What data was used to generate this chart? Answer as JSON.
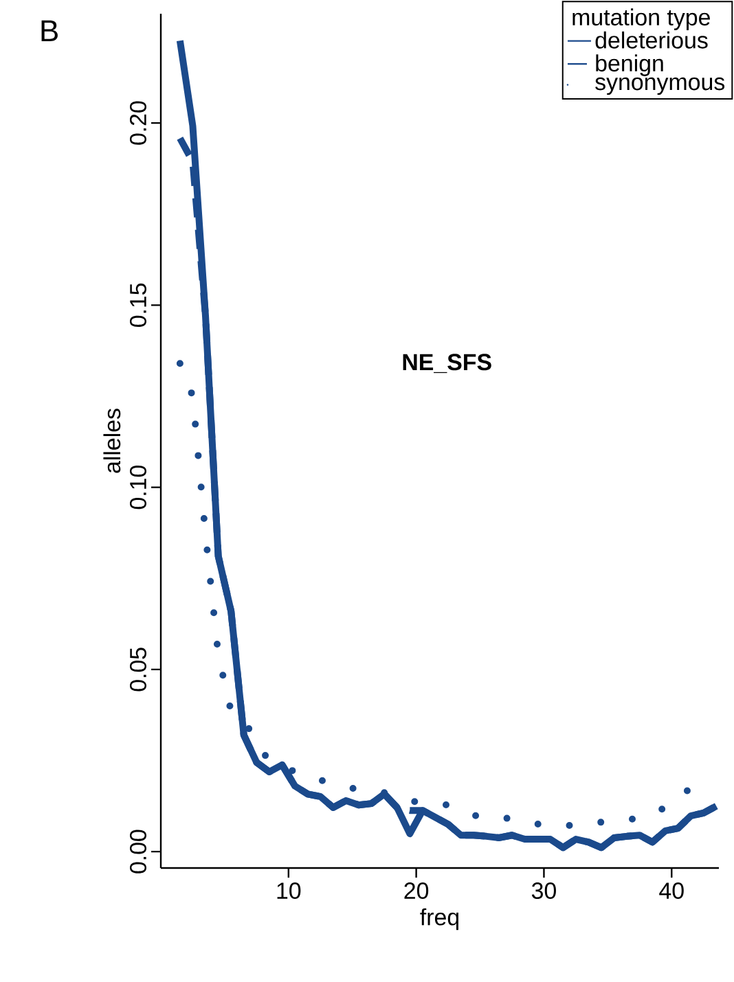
{
  "chart_data": {
    "type": "line",
    "xlabel": "freq",
    "ylabel": "alleles",
    "legend_title": "mutation type",
    "legend": "top right",
    "xlim": [
      0,
      43.7
    ],
    "ylim": [
      -0.0045,
      0.23
    ],
    "xticks": [
      10,
      20,
      30,
      40
    ],
    "yticks": [
      {
        "value": 0,
        "label": "0.00"
      },
      {
        "value": 0.05,
        "label": "0.05"
      },
      {
        "value": 0.1,
        "label": "0.10"
      },
      {
        "value": 0.15,
        "label": "0.15"
      },
      {
        "value": 0.2,
        "label": "0.20"
      }
    ],
    "annotations": [
      "B",
      "NE_SFS"
    ],
    "x": [
      1.5,
      2.5,
      3.5,
      4.5,
      5.5,
      6.5,
      7.5,
      8.5,
      9.5,
      10.5,
      11.5,
      12.5,
      13.5,
      14.5,
      15.5,
      16.5,
      17.5,
      18.5,
      19.5,
      20.5,
      21.5,
      22.5,
      23.5,
      24.5,
      25.5,
      26.5,
      27.5,
      28.5,
      29.5,
      30.5,
      31.5,
      32.5,
      33.5,
      34.5,
      35.5,
      36.5,
      37.5,
      38.5,
      39.5,
      40.5,
      41.5,
      42.5,
      43.5
    ],
    "series": [
      {
        "name": "deleterious",
        "color": "#1b4a8c",
        "line_style": "solid",
        "values": [
          0.2226,
          0.1992,
          0.147,
          0.0811,
          0.066,
          0.032,
          0.0245,
          0.0219,
          0.0238,
          0.018,
          0.0158,
          0.0151,
          0.0121,
          0.014,
          0.0128,
          0.0132,
          0.0158,
          0.0121,
          0.0049,
          0.0113,
          0.0094,
          0.0075,
          0.0045,
          0.0045,
          0.0042,
          0.0038,
          0.0045,
          0.0034,
          0.0034,
          0.0034,
          0.0011,
          0.0034,
          0.0026,
          0.0011,
          0.0038,
          0.0042,
          0.0045,
          0.0026,
          0.0057,
          0.0064,
          0.0098,
          0.0106,
          0.0125
        ]
      },
      {
        "name": "benign",
        "color": "#1b4a8c",
        "line_style": "dashed",
        "values": [
          0.1958,
          0.1894,
          0.147,
          0.0811,
          0.066,
          0.032,
          0.0245,
          0.0219,
          0.0238,
          0.018,
          0.0158,
          0.0151,
          0.0121,
          0.014,
          0.0128,
          0.0132,
          0.0158,
          0.0121,
          0.0113,
          0.0113,
          0.0094,
          0.0075,
          0.0045,
          0.0045,
          0.0042,
          0.0038,
          0.0045,
          0.0034,
          0.0034,
          0.0034,
          0.0011,
          0.0034,
          0.0026,
          0.0011,
          0.0038,
          0.0042,
          0.0045,
          0.0026,
          0.0057,
          0.0064,
          0.0098,
          0.0106,
          0.0125
        ]
      },
      {
        "name": "synonymous",
        "color": "#1b4a8c",
        "line_style": "dotted",
        "x": [
          1.5,
          2.5,
          3.5,
          4.5,
          5.5,
          6.5,
          7.5,
          8.5,
          10,
          12.5,
          15,
          17.5,
          20,
          22.5,
          25,
          27.5,
          30,
          32.5,
          35,
          37.5,
          40,
          42
        ],
        "values": [
          0.134,
          0.125,
          0.087,
          0.054,
          0.0385,
          0.0366,
          0.0294,
          0.025,
          0.0226,
          0.0196,
          0.0174,
          0.0162,
          0.0136,
          0.0128,
          0.0094,
          0.0091,
          0.0072,
          0.0072,
          0.0083,
          0.0091,
          0.0128,
          0.0192
        ]
      }
    ]
  }
}
